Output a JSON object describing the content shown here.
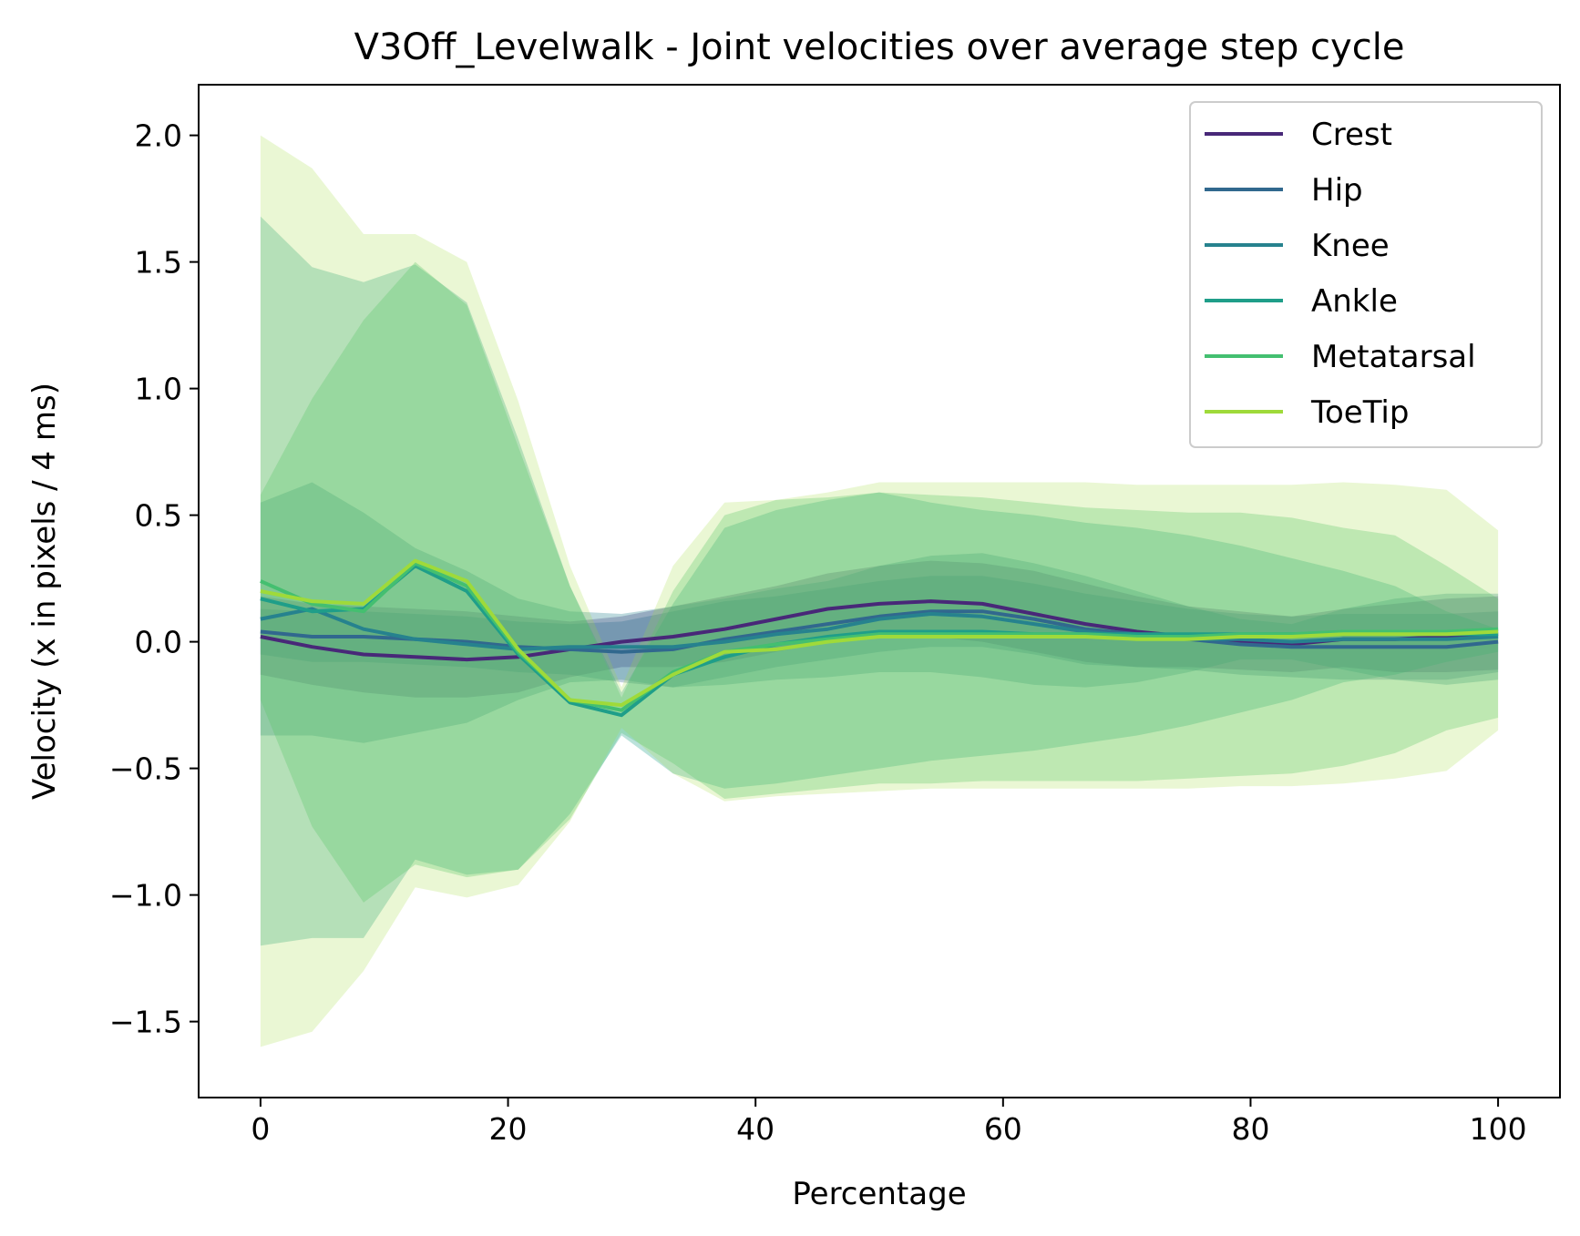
{
  "chart_data": {
    "type": "line",
    "title": "V3Off_Levelwalk - Joint velocities over average step cycle",
    "xlabel": "Percentage",
    "ylabel": "Velocity (x in pixels / 4 ms)",
    "xlim": [
      -5,
      105
    ],
    "ylim": [
      -1.8,
      2.2
    ],
    "xticks": [
      0,
      20,
      40,
      60,
      80,
      100
    ],
    "xtick_labels": [
      "0",
      "20",
      "40",
      "60",
      "80",
      "100"
    ],
    "yticks": [
      -1.5,
      -1.0,
      -0.5,
      0.0,
      0.5,
      1.0,
      1.5,
      2.0
    ],
    "ytick_labels": [
      "−1.5",
      "−1.0",
      "−0.5",
      "0.0",
      "0.5",
      "1.0",
      "1.5",
      "2.0"
    ],
    "grid": false,
    "legend_position": "top-right",
    "x": [
      0,
      4.17,
      8.33,
      12.5,
      16.67,
      20.83,
      25,
      29.17,
      33.33,
      37.5,
      41.67,
      45.83,
      50,
      54.17,
      58.33,
      62.5,
      66.67,
      70.83,
      75,
      79.17,
      83.33,
      87.5,
      91.67,
      95.83,
      100
    ],
    "series": [
      {
        "name": "Crest",
        "color": "#482878",
        "band_alpha": 0.3,
        "values": [
          0.02,
          -0.02,
          -0.05,
          -0.06,
          -0.07,
          -0.06,
          -0.03,
          0.0,
          0.02,
          0.05,
          0.09,
          0.13,
          0.15,
          0.16,
          0.15,
          0.11,
          0.07,
          0.04,
          0.02,
          0.0,
          -0.01,
          0.01,
          0.01,
          0.02,
          0.03
        ],
        "upper": [
          0.18,
          0.15,
          0.14,
          0.13,
          0.12,
          0.1,
          0.08,
          0.1,
          0.14,
          0.18,
          0.22,
          0.27,
          0.3,
          0.32,
          0.31,
          0.28,
          0.23,
          0.18,
          0.14,
          0.12,
          0.1,
          0.13,
          0.15,
          0.17,
          0.18
        ],
        "lower": [
          -0.13,
          -0.17,
          -0.2,
          -0.22,
          -0.22,
          -0.2,
          -0.14,
          -0.1,
          -0.1,
          -0.08,
          -0.04,
          0.0,
          0.02,
          0.02,
          0.0,
          -0.04,
          -0.08,
          -0.1,
          -0.1,
          -0.11,
          -0.12,
          -0.1,
          -0.12,
          -0.12,
          -0.11
        ]
      },
      {
        "name": "Hip",
        "color": "#31688e",
        "band_alpha": 0.3,
        "values": [
          0.04,
          0.02,
          0.02,
          0.01,
          0.0,
          -0.02,
          -0.03,
          -0.04,
          -0.03,
          0.01,
          0.04,
          0.07,
          0.1,
          0.12,
          0.12,
          0.09,
          0.05,
          0.03,
          0.01,
          -0.01,
          -0.02,
          -0.02,
          -0.02,
          -0.02,
          0.0
        ],
        "upper": [
          0.13,
          0.12,
          0.12,
          0.11,
          0.1,
          0.08,
          0.07,
          0.08,
          0.12,
          0.16,
          0.18,
          0.21,
          0.24,
          0.26,
          0.26,
          0.23,
          0.19,
          0.16,
          0.13,
          0.11,
          0.1,
          0.11,
          0.11,
          0.11,
          0.12
        ],
        "lower": [
          -0.05,
          -0.08,
          -0.08,
          -0.09,
          -0.1,
          -0.12,
          -0.13,
          -0.16,
          -0.18,
          -0.14,
          -0.1,
          -0.07,
          -0.04,
          -0.02,
          -0.02,
          -0.05,
          -0.09,
          -0.1,
          -0.11,
          -0.13,
          -0.14,
          -0.15,
          -0.15,
          -0.15,
          -0.12
        ]
      },
      {
        "name": "Knee",
        "color": "#26828e",
        "band_alpha": 0.3,
        "values": [
          0.09,
          0.13,
          0.05,
          0.01,
          -0.01,
          -0.03,
          -0.02,
          -0.02,
          -0.02,
          0.0,
          0.03,
          0.05,
          0.09,
          0.11,
          0.1,
          0.07,
          0.04,
          0.02,
          0.01,
          0.01,
          0.0,
          0.01,
          0.01,
          0.01,
          0.02
        ],
        "upper": [
          0.55,
          0.63,
          0.51,
          0.37,
          0.28,
          0.17,
          0.12,
          0.11,
          0.14,
          0.17,
          0.21,
          0.24,
          0.3,
          0.34,
          0.35,
          0.31,
          0.26,
          0.2,
          0.14,
          0.09,
          0.07,
          0.13,
          0.17,
          0.19,
          0.19
        ],
        "lower": [
          -0.37,
          -0.37,
          -0.4,
          -0.36,
          -0.32,
          -0.23,
          -0.16,
          -0.15,
          -0.18,
          -0.17,
          -0.15,
          -0.14,
          -0.12,
          -0.12,
          -0.14,
          -0.17,
          -0.18,
          -0.16,
          -0.12,
          -0.07,
          -0.07,
          -0.11,
          -0.15,
          -0.17,
          -0.15
        ]
      },
      {
        "name": "Ankle",
        "color": "#1f9e89",
        "band_alpha": 0.3,
        "values": [
          0.17,
          0.12,
          0.13,
          0.3,
          0.2,
          -0.05,
          -0.24,
          -0.29,
          -0.13,
          -0.06,
          -0.01,
          0.02,
          0.04,
          0.04,
          0.04,
          0.03,
          0.03,
          0.03,
          0.03,
          0.03,
          0.03,
          0.03,
          0.03,
          0.03,
          0.03
        ],
        "upper": [
          1.68,
          1.48,
          1.42,
          1.49,
          1.34,
          0.8,
          0.22,
          -0.2,
          0.15,
          0.45,
          0.52,
          0.56,
          0.59,
          0.55,
          0.52,
          0.5,
          0.47,
          0.45,
          0.42,
          0.38,
          0.33,
          0.28,
          0.22,
          0.12,
          0.05
        ],
        "lower": [
          -1.2,
          -1.17,
          -1.17,
          -0.86,
          -0.92,
          -0.9,
          -0.68,
          -0.37,
          -0.52,
          -0.58,
          -0.56,
          -0.53,
          -0.5,
          -0.47,
          -0.45,
          -0.43,
          -0.4,
          -0.37,
          -0.33,
          -0.28,
          -0.23,
          -0.16,
          -0.13,
          -0.08,
          -0.04
        ]
      },
      {
        "name": "Metatarsal",
        "color": "#44bf70",
        "band_alpha": 0.3,
        "values": [
          0.24,
          0.15,
          0.12,
          0.31,
          0.22,
          -0.04,
          -0.23,
          -0.27,
          -0.12,
          -0.04,
          -0.01,
          0.01,
          0.03,
          0.03,
          0.03,
          0.03,
          0.03,
          0.02,
          0.02,
          0.03,
          0.03,
          0.04,
          0.04,
          0.04,
          0.05
        ],
        "upper": [
          0.58,
          0.96,
          1.27,
          1.5,
          1.33,
          0.77,
          0.22,
          -0.22,
          0.2,
          0.5,
          0.56,
          0.57,
          0.59,
          0.58,
          0.57,
          0.55,
          0.53,
          0.52,
          0.51,
          0.51,
          0.49,
          0.45,
          0.42,
          0.3,
          0.17
        ],
        "lower": [
          -0.23,
          -0.73,
          -1.03,
          -0.88,
          -0.93,
          -0.9,
          -0.7,
          -0.36,
          -0.48,
          -0.62,
          -0.6,
          -0.58,
          -0.56,
          -0.56,
          -0.55,
          -0.55,
          -0.55,
          -0.55,
          -0.54,
          -0.53,
          -0.52,
          -0.49,
          -0.44,
          -0.35,
          -0.3
        ]
      },
      {
        "name": "ToeTip",
        "color": "#9fda3a",
        "band_alpha": 0.22,
        "values": [
          0.2,
          0.16,
          0.15,
          0.32,
          0.24,
          -0.03,
          -0.23,
          -0.25,
          -0.13,
          -0.04,
          -0.03,
          0.0,
          0.02,
          0.02,
          0.02,
          0.02,
          0.02,
          0.01,
          0.01,
          0.02,
          0.02,
          0.03,
          0.03,
          0.03,
          0.04
        ],
        "upper": [
          2.0,
          1.87,
          1.61,
          1.61,
          1.5,
          0.95,
          0.3,
          -0.18,
          0.3,
          0.55,
          0.56,
          0.59,
          0.63,
          0.63,
          0.63,
          0.63,
          0.63,
          0.62,
          0.62,
          0.62,
          0.62,
          0.63,
          0.62,
          0.6,
          0.44
        ],
        "lower": [
          -1.6,
          -1.54,
          -1.3,
          -0.97,
          -1.01,
          -0.96,
          -0.71,
          -0.34,
          -0.52,
          -0.63,
          -0.61,
          -0.6,
          -0.59,
          -0.58,
          -0.58,
          -0.58,
          -0.58,
          -0.58,
          -0.58,
          -0.57,
          -0.57,
          -0.56,
          -0.54,
          -0.51,
          -0.35
        ]
      }
    ]
  }
}
